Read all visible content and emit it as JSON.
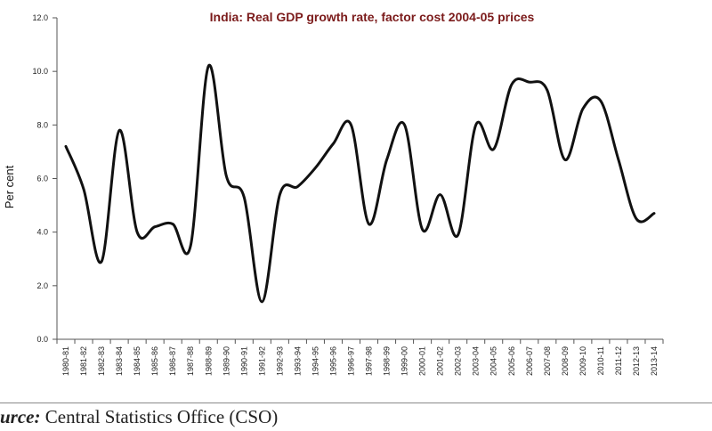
{
  "colors": {
    "title": "#7b1b1b",
    "line": "#111111",
    "axis": "#555555"
  },
  "chart_data": {
    "type": "line",
    "title": "India: Real GDP growth rate, factor cost 2004-05 prices",
    "xlabel": "",
    "ylabel": "Per cent",
    "ylim": [
      0,
      12
    ],
    "yticks": [
      "0.0",
      "2.0",
      "4.0",
      "6.0",
      "8.0",
      "10.0",
      "12.0"
    ],
    "categories": [
      "1980-81",
      "1981-82",
      "1982-83",
      "1983-84",
      "1984-85",
      "1985-86",
      "1986-87",
      "1987-88",
      "1988-89",
      "1989-90",
      "1990-91",
      "1991-92",
      "1992-93",
      "1993-94",
      "1994-95",
      "1995-96",
      "1996-97",
      "1997-98",
      "1998-99",
      "1999-00",
      "2000-01",
      "2001-02",
      "2002-03",
      "2003-04",
      "2004-05",
      "2005-06",
      "2006-07",
      "2007-08",
      "2008-09",
      "2009-10",
      "2010-11",
      "2011-12",
      "2012-13",
      "2013-14"
    ],
    "series": [
      {
        "name": "Real GDP growth rate",
        "values": [
          7.2,
          5.6,
          2.9,
          7.8,
          4.0,
          4.2,
          4.3,
          3.5,
          10.2,
          6.1,
          5.3,
          1.4,
          5.4,
          5.7,
          6.4,
          7.3,
          8.0,
          4.3,
          6.7,
          8.0,
          4.1,
          5.4,
          3.9,
          8.0,
          7.1,
          9.5,
          9.6,
          9.3,
          6.7,
          8.6,
          8.9,
          6.7,
          4.5,
          4.7
        ]
      }
    ]
  },
  "footer": {
    "source_label": "urce:",
    "source_text": "Central Statistics Office (CSO)"
  }
}
